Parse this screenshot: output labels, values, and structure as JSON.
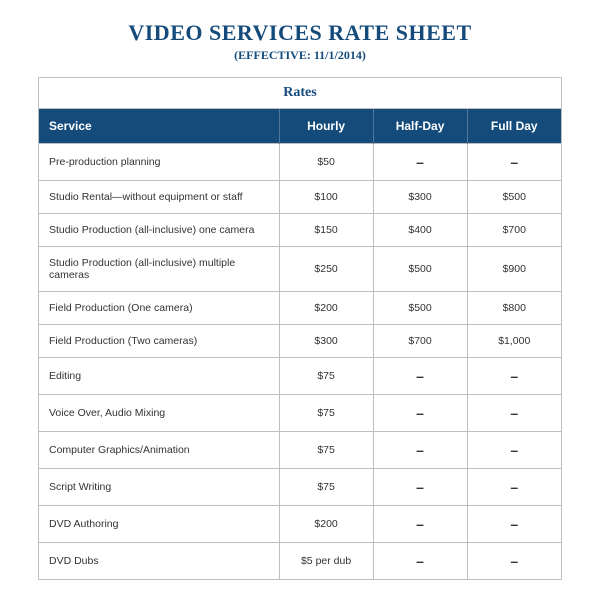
{
  "title": "VIDEO SERVICES RATE SHEET",
  "subtitle": "(EFFECTIVE: 11/1/2014)",
  "caption": "Rates",
  "colors": {
    "title_color": "#144b7b",
    "subtitle_color": "#144b7b",
    "header_bg": "#144b7b",
    "header_text": "#ffffff",
    "border_color": "#bfbfbf",
    "body_text": "#333333",
    "background": "#ffffff"
  },
  "typography": {
    "title_fontsize": 22,
    "subtitle_fontsize": 12,
    "caption_fontsize": 14,
    "header_fontsize": 12,
    "cell_fontsize": 10.5
  },
  "columns": [
    {
      "key": "service",
      "label": "Service",
      "align": "left",
      "width_pct": 46
    },
    {
      "key": "hourly",
      "label": "Hourly",
      "align": "center",
      "width_pct": 18
    },
    {
      "key": "halfday",
      "label": "Half-Day",
      "align": "center",
      "width_pct": 18
    },
    {
      "key": "fullday",
      "label": "Full Day",
      "align": "center",
      "width_pct": 18
    }
  ],
  "rows": [
    {
      "service": "Pre-production planning",
      "hourly": "$50",
      "halfday": "–",
      "fullday": "–"
    },
    {
      "service": "Studio Rental—without equipment or staff",
      "hourly": "$100",
      "halfday": "$300",
      "fullday": "$500"
    },
    {
      "service": "Studio Production (all-inclusive) one camera",
      "hourly": "$150",
      "halfday": "$400",
      "fullday": "$700"
    },
    {
      "service": "Studio Production (all-inclusive) multiple cameras",
      "hourly": "$250",
      "halfday": "$500",
      "fullday": "$900"
    },
    {
      "service": "Field Production (One camera)",
      "hourly": "$200",
      "halfday": "$500",
      "fullday": "$800"
    },
    {
      "service": "Field Production (Two cameras)",
      "hourly": "$300",
      "halfday": "$700",
      "fullday": "$1,000"
    },
    {
      "service": "Editing",
      "hourly": "$75",
      "halfday": "–",
      "fullday": "–"
    },
    {
      "service": "Voice Over, Audio Mixing",
      "hourly": "$75",
      "halfday": "–",
      "fullday": "–"
    },
    {
      "service": "Computer Graphics/Animation",
      "hourly": "$75",
      "halfday": "–",
      "fullday": "–"
    },
    {
      "service": "Script Writing",
      "hourly": "$75",
      "halfday": "–",
      "fullday": "–"
    },
    {
      "service": "DVD Authoring",
      "hourly": "$200",
      "halfday": "–",
      "fullday": "–"
    },
    {
      "service": "DVD Dubs",
      "hourly": "$5 per dub",
      "halfday": "–",
      "fullday": "–"
    }
  ]
}
